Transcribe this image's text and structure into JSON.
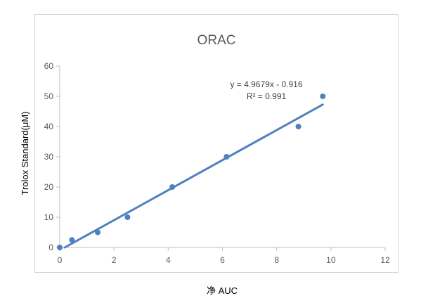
{
  "chart_data": {
    "type": "scatter",
    "title": "ORAC",
    "xlabel": "净 AUC",
    "ylabel": "Trolox Standard(μM)",
    "xlim": [
      0,
      12
    ],
    "ylim": [
      0,
      60
    ],
    "x_ticks": [
      "0",
      "2",
      "4",
      "6",
      "8",
      "10",
      "12"
    ],
    "y_ticks": [
      "0",
      "10",
      "20",
      "30",
      "40",
      "50",
      "60"
    ],
    "grid": false,
    "points": [
      {
        "x": 0.0,
        "y": 0
      },
      {
        "x": 0.45,
        "y": 2.5
      },
      {
        "x": 1.4,
        "y": 5
      },
      {
        "x": 2.5,
        "y": 10
      },
      {
        "x": 4.15,
        "y": 20
      },
      {
        "x": 6.15,
        "y": 30
      },
      {
        "x": 8.8,
        "y": 40
      },
      {
        "x": 9.7,
        "y": 50
      }
    ],
    "trendline": {
      "slope": 4.9679,
      "intercept": -0.916,
      "x_start": 0,
      "x_end": 9.7
    },
    "annotations": {
      "equation": "y = 4.9679x - 0.916",
      "r2": "R² = 0.991"
    },
    "colors": {
      "marker": "#4f81bd",
      "line": "#4f81bd",
      "axis": "#bfbfbf"
    }
  }
}
